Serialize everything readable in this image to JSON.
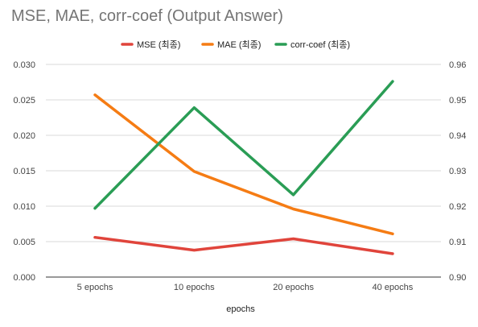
{
  "chart_data": {
    "type": "line",
    "title": "MSE, MAE, corr-coef (Output Answer)",
    "xlabel": "epochs",
    "ylabel": "",
    "y2label": "",
    "categories": [
      "5 epochs",
      "10 epochs",
      "20 epochs",
      "40 epochs"
    ],
    "ylim": [
      0,
      0.03
    ],
    "yticks": [
      "0.000",
      "0.005",
      "0.010",
      "0.015",
      "0.020",
      "0.025",
      "0.030"
    ],
    "y2lim": [
      0.9,
      0.96
    ],
    "y2ticks": [
      "0.90",
      "0.91",
      "0.92",
      "0.93",
      "0.94",
      "0.95",
      "0.96"
    ],
    "grid": true,
    "legend_position": "top",
    "series": [
      {
        "name": "MSE (최종)",
        "axis": "left",
        "color": "#e0443b",
        "values": [
          0.0056,
          0.0038,
          0.0054,
          0.0033
        ]
      },
      {
        "name": "MAE (최종)",
        "axis": "left",
        "color": "#f57c14",
        "values": [
          0.0257,
          0.0149,
          0.0096,
          0.0061
        ]
      },
      {
        "name": "corr-coef (최종)",
        "axis": "right",
        "color": "#2a9d55",
        "values": [
          0.9194,
          0.9478,
          0.9232,
          0.9552
        ]
      }
    ]
  }
}
